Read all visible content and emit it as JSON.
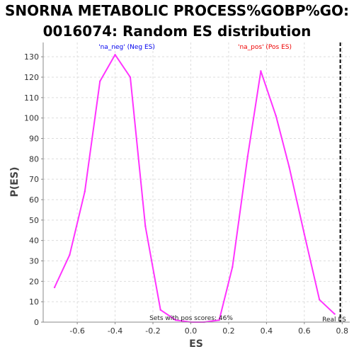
{
  "chart_data": {
    "type": "line",
    "title_line1": "SNORNA METABOLIC PROCESS%GOBP%GO:",
    "title_line2": "0016074: Random ES distribution",
    "xlabel": "ES",
    "ylabel": "P(ES)",
    "xlim": [
      -0.78,
      0.84
    ],
    "ylim": [
      0,
      137
    ],
    "x_ticks": [
      -0.6,
      -0.4,
      -0.2,
      0.0,
      0.2,
      0.4,
      0.6,
      0.8
    ],
    "x_tick_labels": [
      "-0.6",
      "-0.4",
      "-0.2",
      "0.0",
      "0.2",
      "0.4",
      "0.6",
      "0.8"
    ],
    "y_ticks": [
      0,
      10,
      20,
      30,
      40,
      50,
      60,
      70,
      80,
      90,
      100,
      110,
      120,
      130
    ],
    "y_tick_labels": [
      "0",
      "10",
      "20",
      "30",
      "40",
      "50",
      "60",
      "70",
      "80",
      "90",
      "100",
      "110",
      "120",
      "130"
    ],
    "grid": true,
    "line_color": "#ff33ff",
    "series": [
      {
        "x": [
          -0.72,
          -0.64,
          -0.56,
          -0.48,
          -0.4,
          -0.32,
          -0.24,
          -0.16,
          -0.08,
          0.0,
          0.07,
          0.15,
          0.22,
          0.3,
          0.37,
          0.45,
          0.52,
          0.6,
          0.68,
          0.76
        ],
        "y": [
          17,
          33,
          64,
          118,
          131,
          120,
          47,
          6,
          1,
          0,
          0,
          1,
          27,
          81,
          123,
          101,
          76,
          43,
          11,
          4
        ]
      }
    ],
    "annotations": {
      "neg_label": "'na_neg' (Neg ES)",
      "neg_color": "#0000ee",
      "pos_label": "'na_pos' (Pos ES)",
      "pos_color": "#ee0000",
      "pos_scores_text": "Sets with pos scores: 46%",
      "real_es_label": "Real ES",
      "real_es_value": 0.79
    }
  }
}
